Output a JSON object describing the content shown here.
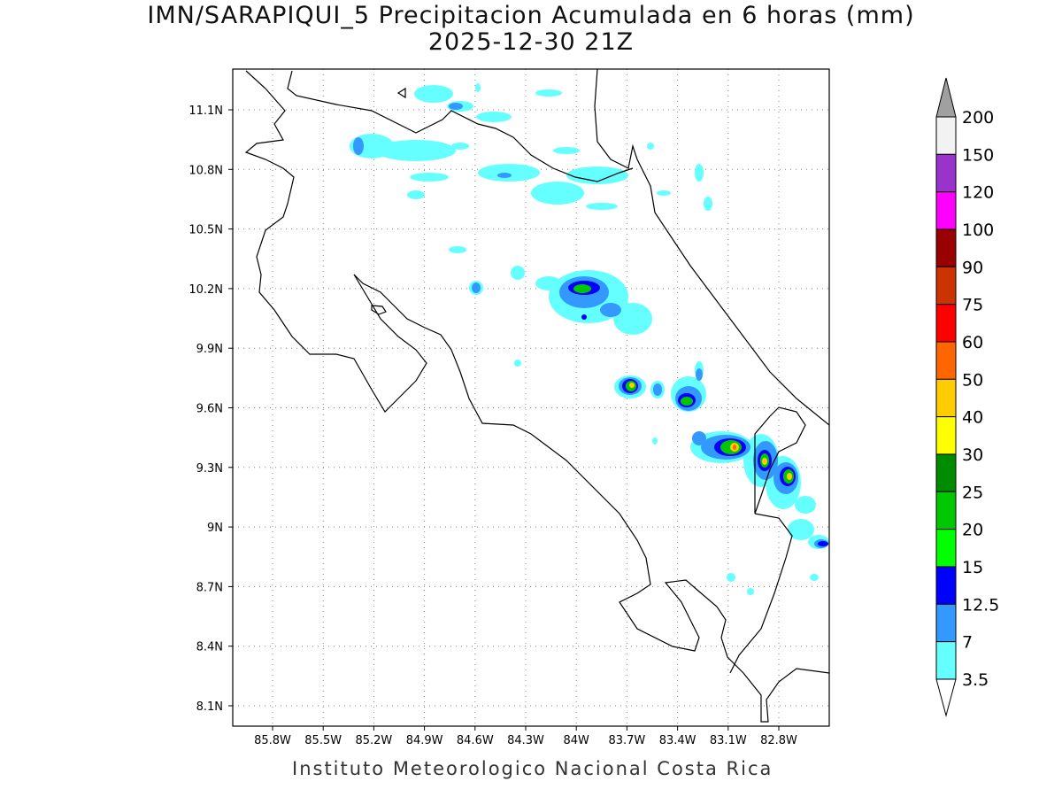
{
  "title_line1": "IMN/SARAPIQUI_5 Precipitacion Acumulada en 6 horas (mm)",
  "title_line2": "2025-12-30 21Z",
  "footer": "Instituto Meteorologico Nacional Costa Rica",
  "map": {
    "lon_labels": [
      "85.8W",
      "85.5W",
      "85.2W",
      "84.9W",
      "84.6W",
      "84.3W",
      "84W",
      "83.7W",
      "83.4W",
      "83.1W",
      "82.8W"
    ],
    "lat_labels": [
      "11.1N",
      "10.8N",
      "10.5N",
      "10.2N",
      "9.9N",
      "9.6N",
      "9.3N",
      "9N",
      "8.7N",
      "8.4N",
      "8.1N"
    ]
  },
  "colorbar": {
    "labels": [
      "200",
      "150",
      "120",
      "100",
      "90",
      "75",
      "60",
      "50",
      "40",
      "30",
      "25",
      "20",
      "15",
      "12.5",
      "7",
      "3.5"
    ],
    "colors": [
      "#f2f2f2",
      "#9933cc",
      "#ff00ff",
      "#990000",
      "#cc3300",
      "#ff0000",
      "#ff6600",
      "#ffcc00",
      "#ffff00",
      "#008c00",
      "#00c800",
      "#00ff00",
      "#0000ff",
      "#3399ff",
      "#66ffff"
    ],
    "over_color": "#a0a0a0"
  }
}
